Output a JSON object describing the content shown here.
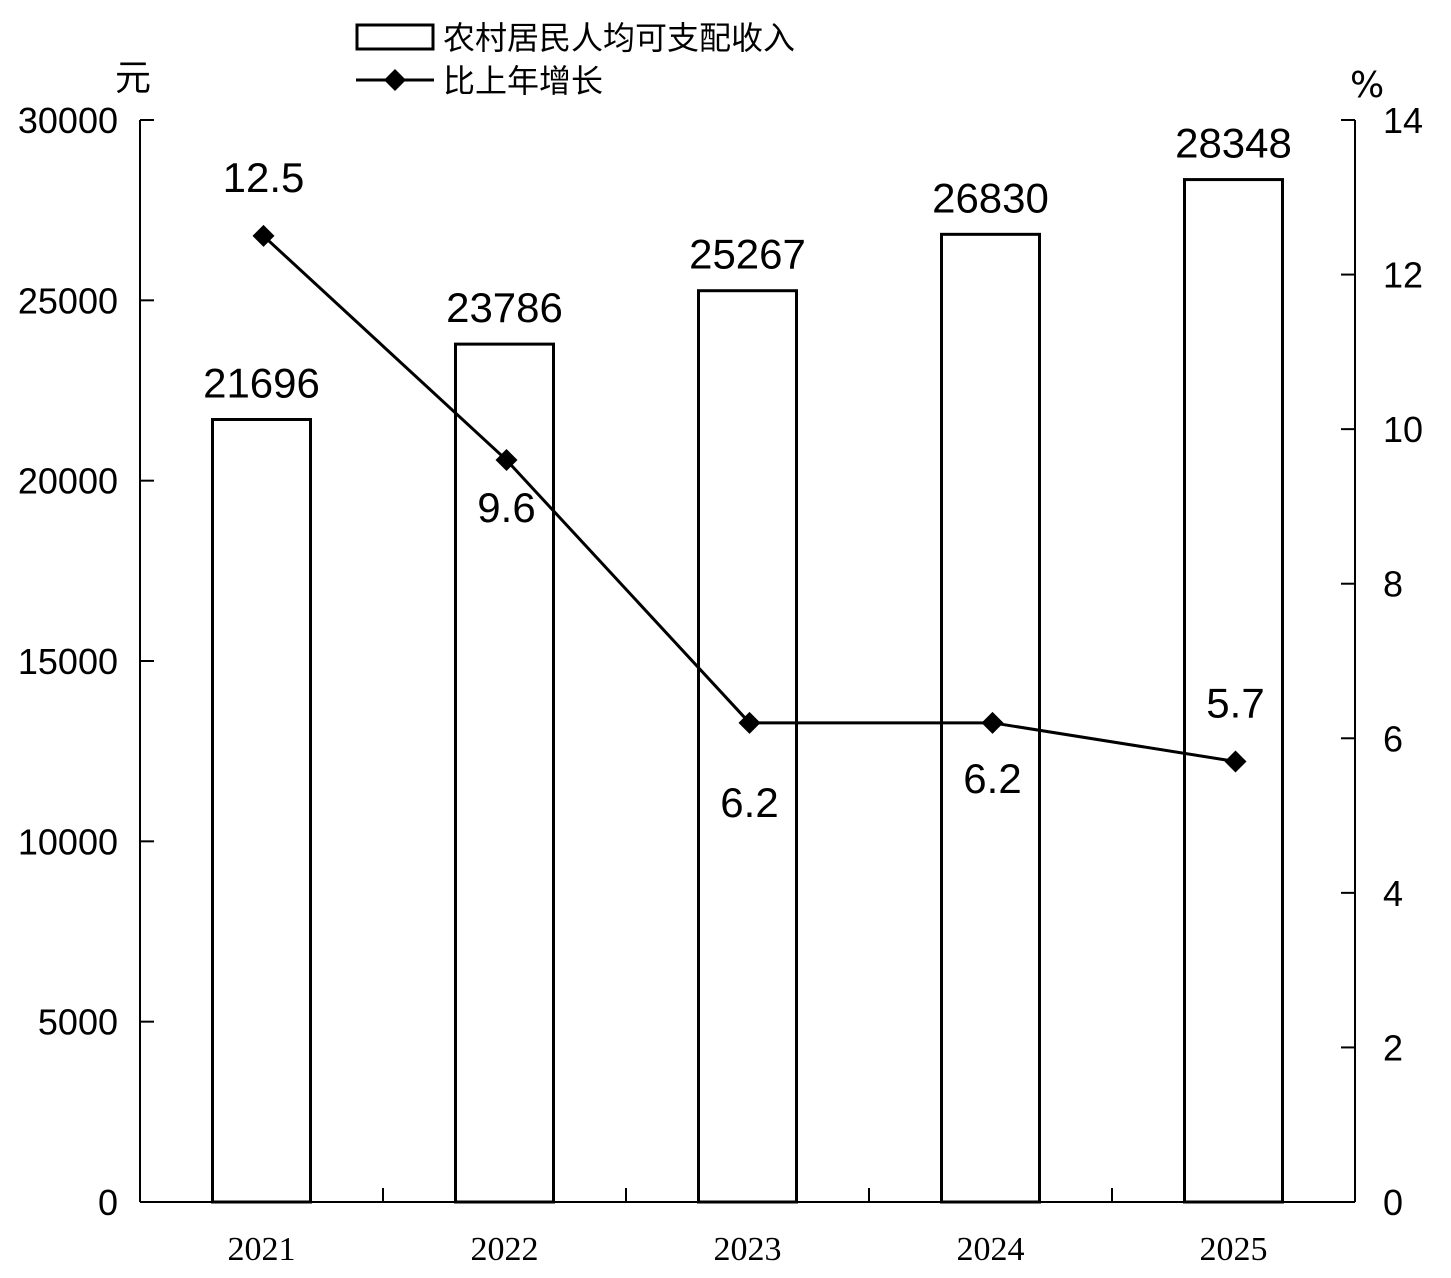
{
  "chart_data": {
    "type": "bar",
    "categories": [
      "2021",
      "2022",
      "2023",
      "2024",
      "2025"
    ],
    "series": [
      {
        "name": "农村居民人均可支配收入",
        "type": "bar",
        "axis": "left",
        "values": [
          21696,
          23786,
          25267,
          26830,
          28348
        ]
      },
      {
        "name": "比上年增长",
        "type": "line",
        "axis": "right",
        "marker": "diamond",
        "values": [
          12.5,
          9.6,
          6.2,
          6.2,
          5.7
        ]
      }
    ],
    "y_left": {
      "unit": "元",
      "range": [
        0,
        30000
      ],
      "ticks": [
        "0",
        "5000",
        "10000",
        "15000",
        "20000",
        "25000",
        "30000"
      ]
    },
    "y_right": {
      "unit": "%",
      "range": [
        0,
        14
      ],
      "ticks": [
        "0",
        "2",
        "4",
        "6",
        "8",
        "10",
        "12",
        "14"
      ]
    },
    "bar_labels": [
      "21696",
      "23786",
      "25267",
      "26830",
      "28348"
    ],
    "point_labels": [
      "12.5",
      "9.6",
      "6.2",
      "6.2",
      "5.7"
    ],
    "legend": {
      "position": "top",
      "items": [
        "农村居民人均可支配收入",
        "比上年增长"
      ]
    },
    "grid": false,
    "colors": {
      "bar_fill": "#ffffff",
      "stroke": "#000000",
      "background": "#ffffff"
    }
  }
}
